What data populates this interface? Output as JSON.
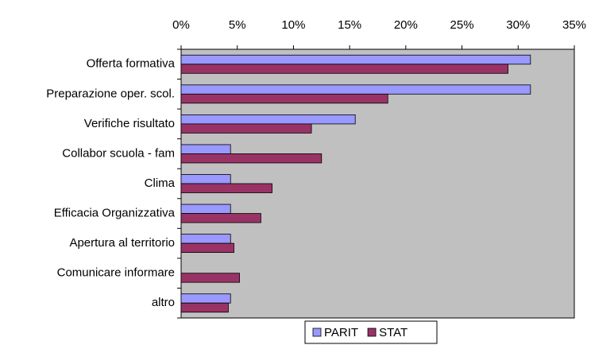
{
  "chart_data": {
    "type": "bar",
    "orientation": "horizontal",
    "categories": [
      "Offerta formativa",
      "Preparazione oper. scol.",
      "Verifiche risultato",
      "Collabor scuola - fam",
      "Clima",
      "Efficacia Organizzativa",
      "Apertura al territorio",
      "Comunicare informare",
      "altro"
    ],
    "series": [
      {
        "name": "PARIT",
        "color": "#9999ff",
        "values": [
          31.1,
          31.1,
          15.5,
          4.4,
          4.4,
          4.4,
          4.4,
          0,
          4.4
        ]
      },
      {
        "name": "STAT",
        "color": "#993366",
        "values": [
          29.1,
          18.4,
          11.6,
          12.5,
          8.1,
          7.1,
          4.7,
          5.2,
          4.2
        ]
      }
    ],
    "xlim": [
      0,
      35
    ],
    "xticks": [
      {
        "value": 0,
        "label": "0%"
      },
      {
        "value": 5,
        "label": "5%"
      },
      {
        "value": 10,
        "label": "10%"
      },
      {
        "value": 15,
        "label": "15%"
      },
      {
        "value": 20,
        "label": "20%"
      },
      {
        "value": 25,
        "label": "25%"
      },
      {
        "value": 30,
        "label": "30%"
      },
      {
        "value": 35,
        "label": "35%"
      }
    ],
    "legend": "bottom",
    "grid": false
  }
}
